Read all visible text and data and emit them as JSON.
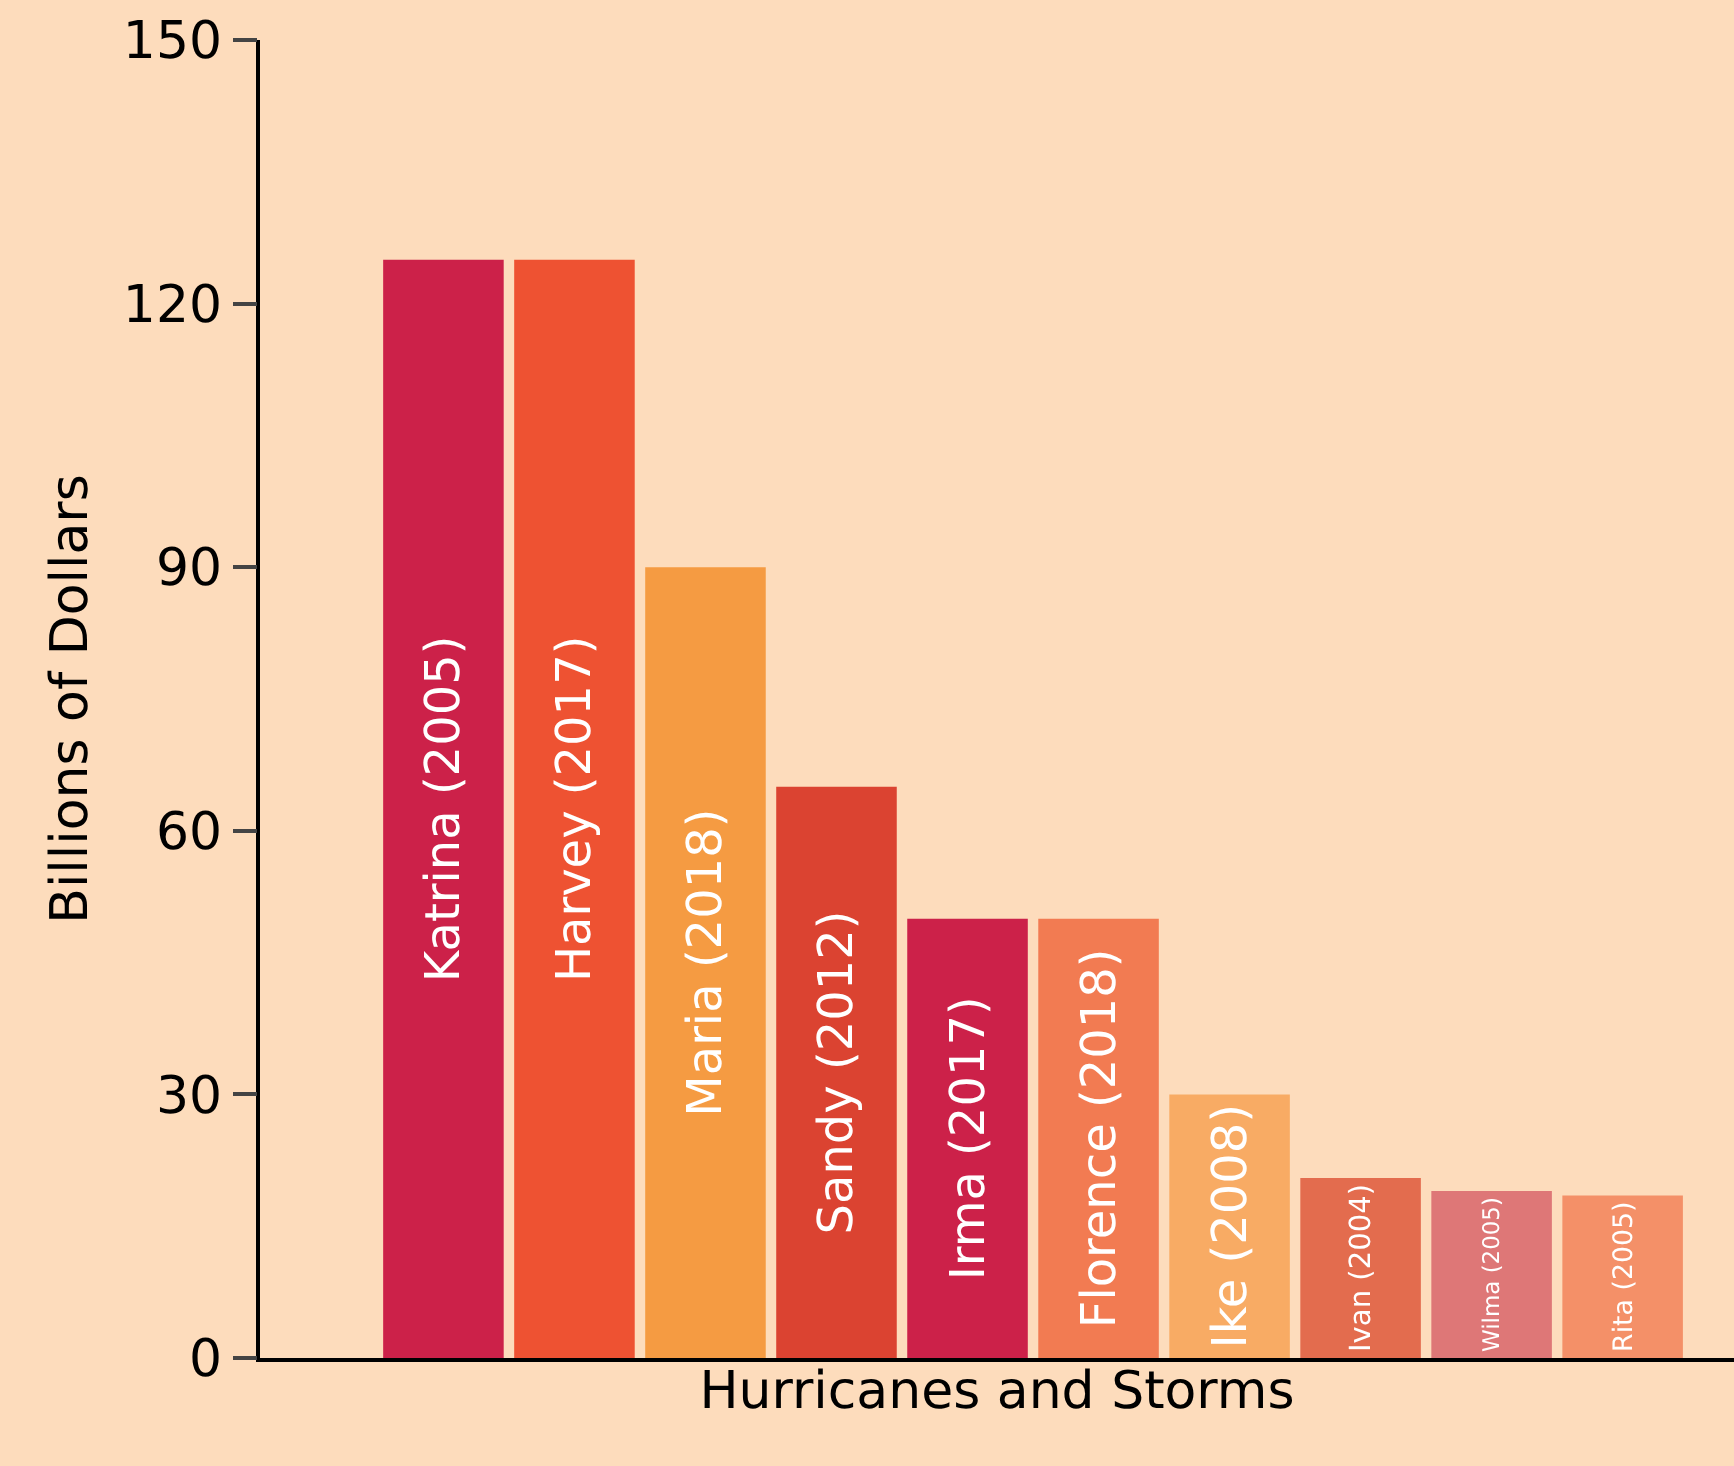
{
  "chart_data": {
    "type": "bar",
    "xlabel": "Hurricanes and Storms",
    "ylabel": "Billions of Dollars",
    "categories": [
      "Katrina (2005)",
      "Harvey (2017)",
      "Maria (2018)",
      "Sandy (2012)",
      "Irma (2017)",
      "Florence (2018)",
      "Ike (2008)",
      "Ivan (2004)",
      "Wilma (2005)",
      "Rita (2005)"
    ],
    "values": [
      125,
      125,
      90,
      65,
      50,
      50,
      30,
      20.5,
      19,
      18.5
    ],
    "colors": [
      "#cc2149",
      "#ee5232",
      "#f59b42",
      "#db4331",
      "#cc2149",
      "#f27b52",
      "#f8ab64",
      "#e36c4e",
      "#de7777",
      "#f49068"
    ],
    "ylim": [
      0,
      150
    ],
    "yticks": [
      0,
      30,
      60,
      90,
      120,
      150
    ],
    "grid": false,
    "legend": false,
    "tick_labels": "y"
  }
}
